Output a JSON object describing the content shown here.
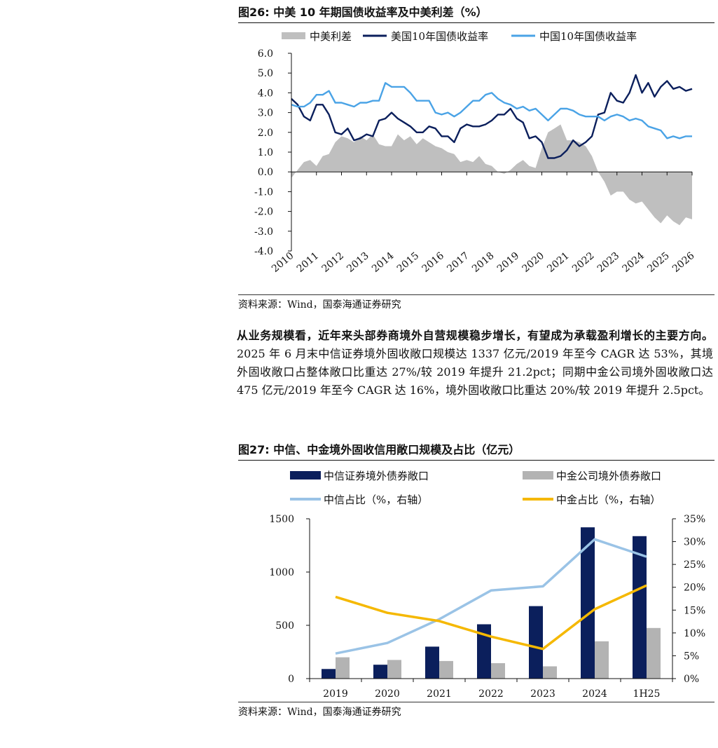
{
  "figure1": {
    "caption": "图26: 中美 10 年期国债收益率及中美利差（%）",
    "source": "资料来源：Wind，国泰海通证券研究"
  },
  "paragraph": {
    "bold": "从业务规模看，近年来头部券商境外自营规模稳步增长，有望成为承载盈利增长的主要方向。",
    "text": "2025 年 6 月末中信证券境外固收敞口规模达 1337 亿元/2019 年至今 CAGR 达 53%，其境外固收敞口占整体敞口比重达 27%/较 2019 年提升 21.2pct；同期中金公司境外固收敞口达 475 亿元/2019 年至今 CAGR 达 16%，境外固收敞口比重达 20%/较 2019 年提升 2.5pct。"
  },
  "figure2": {
    "caption": "图27: 中信、中金境外固收信用敞口规模及占比（亿元）",
    "source": "资料来源：Wind，国泰海通证券研究"
  },
  "chart_data": [
    {
      "type": "line",
      "title": "",
      "series": [
        {
          "name": "中美利差",
          "kind": "area",
          "color": "#bfbfbf",
          "x": [
            2010.0,
            2010.25,
            2010.5,
            2010.75,
            2011.0,
            2011.25,
            2011.5,
            2011.75,
            2012.0,
            2012.25,
            2012.5,
            2012.75,
            2013.0,
            2013.25,
            2013.5,
            2013.75,
            2014.0,
            2014.25,
            2014.5,
            2014.75,
            2015.0,
            2015.25,
            2015.5,
            2015.75,
            2016.0,
            2016.25,
            2016.5,
            2016.75,
            2017.0,
            2017.25,
            2017.5,
            2017.75,
            2018.0,
            2018.25,
            2018.5,
            2018.75,
            2019.0,
            2019.25,
            2019.5,
            2019.75,
            2020.0,
            2020.25,
            2020.5,
            2020.75,
            2021.0,
            2021.25,
            2021.5,
            2021.75,
            2022.0,
            2022.25,
            2022.5,
            2022.75,
            2023.0,
            2023.25,
            2023.5,
            2023.75,
            2024.0,
            2024.25,
            2024.5,
            2024.75,
            2025.0,
            2025.25,
            2025.5,
            2025.75,
            2026.0
          ],
          "values": [
            -0.3,
            0.1,
            0.5,
            0.6,
            0.3,
            0.8,
            0.9,
            1.5,
            1.8,
            1.7,
            1.5,
            1.8,
            1.6,
            1.9,
            1.4,
            1.3,
            1.3,
            1.9,
            1.6,
            1.8,
            1.4,
            1.7,
            1.5,
            1.3,
            1.2,
            1.0,
            0.9,
            0.5,
            0.6,
            0.5,
            0.8,
            0.4,
            0.3,
            0.0,
            -0.1,
            0.1,
            0.4,
            0.6,
            0.3,
            0.2,
            1.2,
            2.0,
            2.2,
            2.4,
            1.6,
            1.6,
            1.5,
            1.3,
            0.8,
            0.0,
            -0.5,
            -1.2,
            -1.0,
            -1.0,
            -1.4,
            -1.6,
            -1.5,
            -1.9,
            -2.3,
            -2.6,
            -2.2,
            -2.5,
            -2.7,
            -2.3,
            -2.4
          ]
        },
        {
          "name": "美国10年国债收益率",
          "kind": "line",
          "color": "#0b1f5c",
          "x": [
            2010.0,
            2010.25,
            2010.5,
            2010.75,
            2011.0,
            2011.25,
            2011.5,
            2011.75,
            2012.0,
            2012.25,
            2012.5,
            2012.75,
            2013.0,
            2013.25,
            2013.5,
            2013.75,
            2014.0,
            2014.25,
            2014.5,
            2014.75,
            2015.0,
            2015.25,
            2015.5,
            2015.75,
            2016.0,
            2016.25,
            2016.5,
            2016.75,
            2017.0,
            2017.25,
            2017.5,
            2017.75,
            2018.0,
            2018.25,
            2018.5,
            2018.75,
            2019.0,
            2019.25,
            2019.5,
            2019.75,
            2020.0,
            2020.25,
            2020.5,
            2020.75,
            2021.0,
            2021.25,
            2021.5,
            2021.75,
            2022.0,
            2022.25,
            2022.5,
            2022.75,
            2023.0,
            2023.25,
            2023.5,
            2023.75,
            2024.0,
            2024.25,
            2024.5,
            2024.75,
            2025.0,
            2025.25,
            2025.5,
            2025.75,
            2026.0
          ],
          "values": [
            3.7,
            3.4,
            2.8,
            2.6,
            3.4,
            3.4,
            2.9,
            2.0,
            1.9,
            2.2,
            1.6,
            1.7,
            1.9,
            1.8,
            2.6,
            2.7,
            3.0,
            2.7,
            2.5,
            2.3,
            2.0,
            2.0,
            2.3,
            2.2,
            1.8,
            1.8,
            1.5,
            2.2,
            2.4,
            2.3,
            2.3,
            2.4,
            2.6,
            2.9,
            2.9,
            3.2,
            2.7,
            2.5,
            1.7,
            1.8,
            1.5,
            0.7,
            0.7,
            0.8,
            1.1,
            1.6,
            1.3,
            1.5,
            1.8,
            2.9,
            3.0,
            4.0,
            3.6,
            3.5,
            4.0,
            4.9,
            4.0,
            4.5,
            3.8,
            4.3,
            4.6,
            4.2,
            4.3,
            4.1,
            4.2
          ]
        },
        {
          "name": "中国10年国债收益率",
          "kind": "line",
          "color": "#4aa3e6",
          "x": [
            2010.0,
            2010.25,
            2010.5,
            2010.75,
            2011.0,
            2011.25,
            2011.5,
            2011.75,
            2012.0,
            2012.25,
            2012.5,
            2012.75,
            2013.0,
            2013.25,
            2013.5,
            2013.75,
            2014.0,
            2014.25,
            2014.5,
            2014.75,
            2015.0,
            2015.25,
            2015.5,
            2015.75,
            2016.0,
            2016.25,
            2016.5,
            2016.75,
            2017.0,
            2017.25,
            2017.5,
            2017.75,
            2018.0,
            2018.25,
            2018.5,
            2018.75,
            2019.0,
            2019.25,
            2019.5,
            2019.75,
            2020.0,
            2020.25,
            2020.5,
            2020.75,
            2021.0,
            2021.25,
            2021.5,
            2021.75,
            2022.0,
            2022.25,
            2022.5,
            2022.75,
            2023.0,
            2023.25,
            2023.5,
            2023.75,
            2024.0,
            2024.25,
            2024.5,
            2024.75,
            2025.0,
            2025.25,
            2025.5,
            2025.75,
            2026.0
          ],
          "values": [
            3.4,
            3.3,
            3.3,
            3.5,
            3.9,
            3.9,
            4.1,
            3.5,
            3.5,
            3.4,
            3.3,
            3.5,
            3.5,
            3.6,
            3.6,
            4.5,
            4.3,
            4.3,
            4.3,
            4.0,
            3.6,
            3.6,
            3.6,
            3.0,
            2.9,
            3.0,
            2.8,
            3.0,
            3.3,
            3.6,
            3.6,
            3.9,
            4.0,
            3.7,
            3.5,
            3.4,
            3.2,
            3.3,
            3.1,
            3.2,
            2.9,
            2.6,
            2.9,
            3.2,
            3.2,
            3.1,
            2.9,
            2.8,
            2.8,
            2.8,
            2.6,
            2.8,
            2.9,
            2.8,
            2.6,
            2.7,
            2.6,
            2.3,
            2.2,
            2.1,
            1.7,
            1.8,
            1.7,
            1.8,
            1.8
          ]
        }
      ],
      "xlim": [
        2010,
        2026
      ],
      "x_ticks": [
        "2010",
        "2011",
        "2012",
        "2013",
        "2014",
        "2015",
        "2016",
        "2017",
        "2018",
        "2019",
        "2020",
        "2021",
        "2022",
        "2023",
        "2024",
        "2025",
        "2026"
      ],
      "ylim": [
        -4.0,
        6.0
      ],
      "y_ticks": [
        "6.0",
        "5.0",
        "4.0",
        "3.0",
        "2.0",
        "1.0",
        "0.0",
        "-1.0",
        "-2.0",
        "-3.0",
        "-4.0"
      ],
      "legend": "top",
      "grid": false
    },
    {
      "type": "bar",
      "categories": [
        "2019",
        "2020",
        "2021",
        "2022",
        "2023",
        "2024",
        "1H25"
      ],
      "series": [
        {
          "name": "中信证券境外债券敞口",
          "kind": "bar",
          "axis": "left",
          "color": "#0b1f5c",
          "values": [
            90,
            130,
            300,
            510,
            680,
            1420,
            1337
          ]
        },
        {
          "name": "中金公司境外债券敞口",
          "kind": "bar",
          "axis": "left",
          "color": "#b3b3b3",
          "values": [
            200,
            175,
            165,
            145,
            115,
            350,
            475
          ]
        },
        {
          "name": "中信占比（%，右轴）",
          "kind": "line",
          "axis": "right",
          "color": "#9ac3e6",
          "values": [
            5.5,
            7.8,
            13.0,
            19.3,
            20.2,
            30.5,
            26.7
          ]
        },
        {
          "name": "中金占比（%，右轴）",
          "kind": "line",
          "axis": "right",
          "color": "#f5b800",
          "values": [
            17.9,
            14.4,
            12.6,
            9.2,
            6.5,
            15.2,
            20.4
          ]
        }
      ],
      "ylim": [
        0,
        1500
      ],
      "y_ticks": [
        "1500",
        "1000",
        "500",
        "0"
      ],
      "y2lim": [
        0,
        35
      ],
      "y2_ticks": [
        "35%",
        "30%",
        "25%",
        "20%",
        "15%",
        "10%",
        "5%",
        "0%"
      ],
      "legend": "top",
      "grid": false
    }
  ]
}
